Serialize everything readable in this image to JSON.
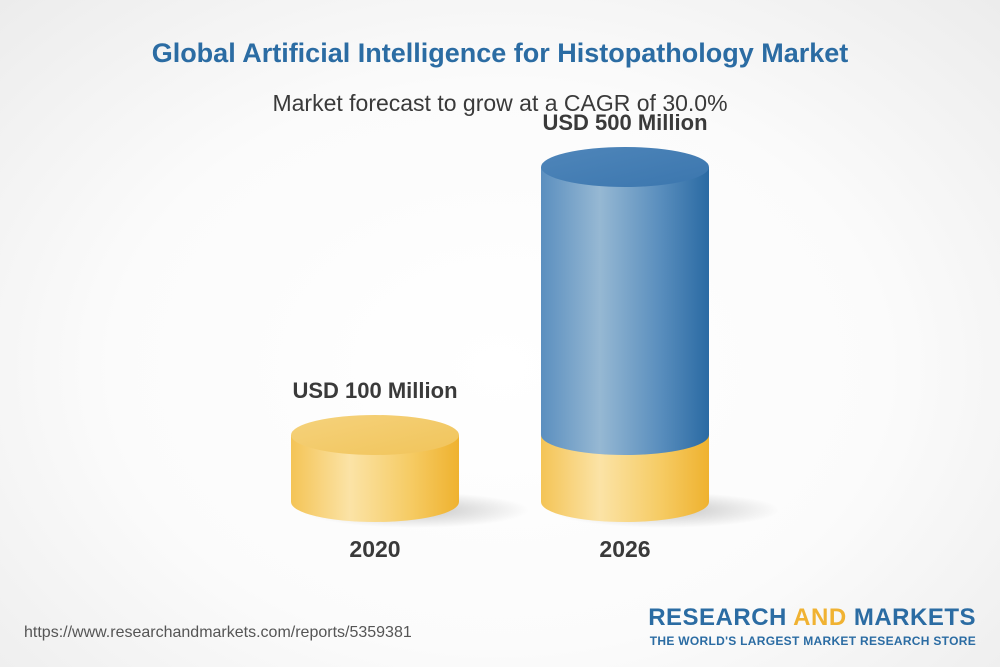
{
  "header": {
    "title": "Global Artificial Intelligence for Histopathology Market",
    "subtitle": "Market forecast to grow at a CAGR of 30.0%"
  },
  "chart_data": {
    "type": "bar",
    "style": "3d-cylinder",
    "categories": [
      "2020",
      "2026"
    ],
    "values": [
      100,
      500
    ],
    "unit": "USD Million",
    "data_labels": [
      "USD 100 Million",
      "USD 500 Million"
    ],
    "title": "Global Artificial Intelligence for Histopathology Market",
    "subtitle": "Market forecast to grow at a CAGR of 30.0%",
    "xlabel": "",
    "ylabel": "",
    "grid": false,
    "colors": {
      "base": "#f2c14e",
      "growth": "#2e6da4"
    }
  },
  "footer": {
    "url": "https://www.researchandmarkets.com/reports/5359381",
    "logo_word1": "RESEARCH",
    "logo_word2": "AND",
    "logo_word3": "MARKETS",
    "logo_tagline": "THE WORLD'S LARGEST MARKET RESEARCH STORE"
  }
}
